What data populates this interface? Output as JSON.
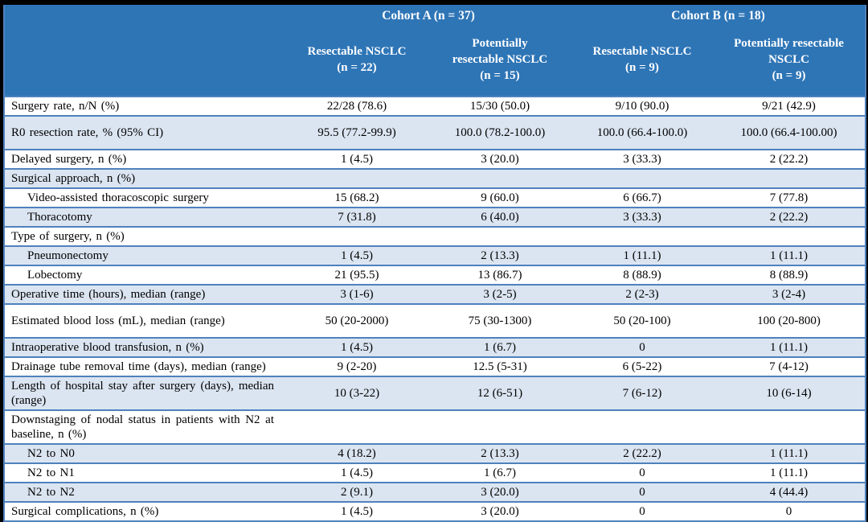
{
  "colors": {
    "header_bg": "#2e75b6",
    "header_text": "#ffffff",
    "row_shade": "#dbe5f1",
    "border": "#4f81bd",
    "frame": "#000000"
  },
  "chart_data": {
    "type": "table",
    "column_groups": [
      {
        "label": "Cohort A (n = 37)",
        "span": 2
      },
      {
        "label": "Cohort B (n = 18)",
        "span": 2
      }
    ],
    "columns": [
      {
        "lines": [
          "Resectable NSCLC",
          "(n = 22)"
        ]
      },
      {
        "lines": [
          "Potentially",
          "resectable NSCLC",
          "(n = 15)"
        ]
      },
      {
        "lines": [
          "Resectable NSCLC",
          "(n = 9)"
        ]
      },
      {
        "lines": [
          "Potentially resectable",
          "NSCLC",
          "(n = 9)"
        ]
      }
    ],
    "rows": [
      {
        "label": "Surgery rate, n/N (%)",
        "indent": false,
        "tall": false,
        "values": [
          "22/28 (78.6)",
          "15/30 (50.0)",
          "9/10 (90.0)",
          "9/21 (42.9)"
        ]
      },
      {
        "label": "R0 resection rate, % (95% CI)",
        "indent": false,
        "tall": true,
        "values": [
          "95.5 (77.2-99.9)",
          "100.0 (78.2-100.0)",
          "100.0 (66.4-100.0)",
          "100.0 (66.4-100.00)"
        ]
      },
      {
        "label": "Delayed surgery, n (%)",
        "indent": false,
        "tall": false,
        "values": [
          "1 (4.5)",
          "3 (20.0)",
          "3 (33.3)",
          "2 (22.2)"
        ]
      },
      {
        "label": "Surgical approach, n (%)",
        "indent": false,
        "tall": false,
        "values": [
          "",
          "",
          "",
          ""
        ]
      },
      {
        "label": "Video-assisted thoracoscopic surgery",
        "indent": true,
        "tall": false,
        "values": [
          "15 (68.2)",
          "9 (60.0)",
          "6 (66.7)",
          "7 (77.8)"
        ]
      },
      {
        "label": "Thoracotomy",
        "indent": true,
        "tall": false,
        "values": [
          "7 (31.8)",
          "6 (40.0)",
          "3 (33.3)",
          "2 (22.2)"
        ]
      },
      {
        "label": "Type of surgery, n (%)",
        "indent": false,
        "tall": false,
        "values": [
          "",
          "",
          "",
          ""
        ]
      },
      {
        "label": "Pneumonectomy",
        "indent": true,
        "tall": false,
        "values": [
          "1 (4.5)",
          "2 (13.3)",
          "1 (11.1)",
          "1 (11.1)"
        ]
      },
      {
        "label": "Lobectomy",
        "indent": true,
        "tall": false,
        "values": [
          "21 (95.5)",
          "13 (86.7)",
          "8 (88.9)",
          "8 (88.9)"
        ]
      },
      {
        "label": "Operative time (hours), median (range)",
        "indent": false,
        "tall": false,
        "values": [
          "3 (1-6)",
          "3 (2-5)",
          "2 (2-3)",
          "3 (2-4)"
        ]
      },
      {
        "label": "Estimated blood loss (mL), median (range)",
        "indent": false,
        "tall": true,
        "values": [
          "50 (20-2000)",
          "75 (30-1300)",
          "50 (20-100)",
          "100 (20-800)"
        ]
      },
      {
        "label": "Intraoperative blood transfusion, n (%)",
        "indent": false,
        "tall": false,
        "values": [
          "1 (4.5)",
          "1 (6.7)",
          "0",
          "1 (11.1)"
        ]
      },
      {
        "label": "Drainage tube removal time (days), median (range)",
        "indent": false,
        "tall": false,
        "values": [
          "9 (2-20)",
          "12.5 (5-31)",
          "6 (5-22)",
          "7 (4-12)"
        ]
      },
      {
        "label": "Length of hospital stay after surgery (days), median (range)",
        "indent": false,
        "tall": false,
        "values": [
          "10 (3-22)",
          "12 (6-51)",
          "7 (6-12)",
          "10 (6-14)"
        ]
      },
      {
        "label": "Downstaging of nodal status in patients with N2 at baseline, n (%)",
        "indent": false,
        "tall": false,
        "values": [
          "",
          "",
          "",
          ""
        ]
      },
      {
        "label": "N2 to N0",
        "indent": true,
        "tall": false,
        "values": [
          "4 (18.2)",
          "2 (13.3)",
          "2 (22.2)",
          "1 (11.1)"
        ]
      },
      {
        "label": "N2 to N1",
        "indent": true,
        "tall": false,
        "values": [
          "1 (4.5)",
          "1 (6.7)",
          "0",
          "1 (11.1)"
        ]
      },
      {
        "label": "N2 to N2",
        "indent": true,
        "tall": false,
        "values": [
          "2 (9.1)",
          "3 (20.0)",
          "0",
          "4 (44.4)"
        ]
      },
      {
        "label": "Surgical complications, n (%)",
        "indent": false,
        "tall": false,
        "values": [
          "1 (4.5)",
          "3 (20.0)",
          "0",
          "0"
        ]
      }
    ]
  }
}
